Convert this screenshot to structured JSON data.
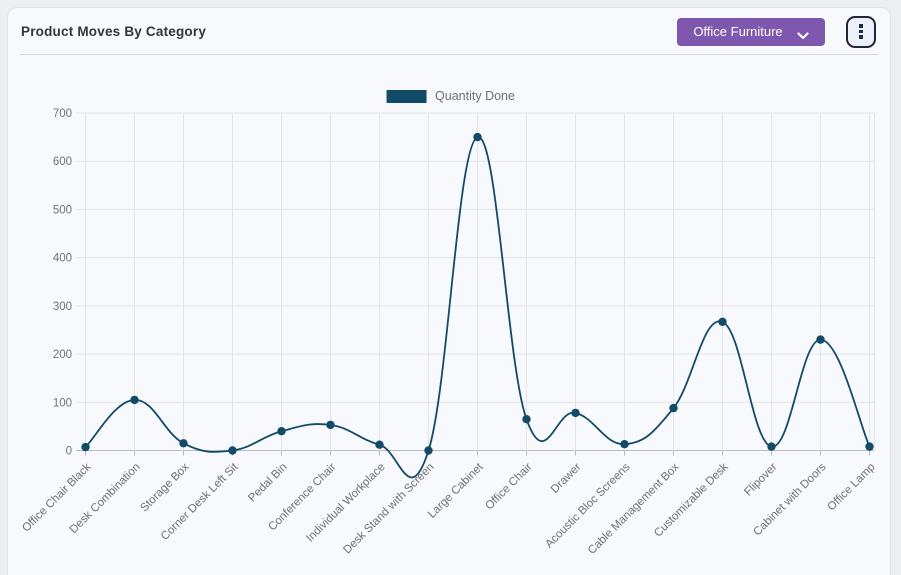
{
  "header": {
    "title": "Product Moves By Category"
  },
  "controls": {
    "category_select": {
      "value": "Office Furniture",
      "icon": "chevron-down-icon"
    },
    "menu_button": {
      "icon": "kebab-menu-icon"
    }
  },
  "legend": {
    "label": "Quantity Done"
  },
  "colors": {
    "accent_purple": "#7e57ae",
    "line": "#124b68",
    "card_background": "#f8f9fc",
    "page_background": "#eceef2",
    "grid": "#e3e4e8",
    "axis": "#b9babf",
    "axis_text": "#707279"
  },
  "chart_data": {
    "type": "line",
    "title": "Product Moves By Category",
    "categories": [
      "Office Chair Black",
      "Desk Combination",
      "Storage Box",
      "Corner Desk Left Sit",
      "Pedal Bin",
      "Conference Chair",
      "Individual Workplace",
      "Desk Stand with Screen",
      "Large Cabinet",
      "Office Chair",
      "Drawer",
      "Acoustic Bloc Screens",
      "Cable Management Box",
      "Customizable Desk",
      "Flipover",
      "Cabinet with Doors",
      "Office Lamp"
    ],
    "series": [
      {
        "name": "Quantity Done",
        "values": [
          7,
          105,
          15,
          0,
          40,
          53,
          12,
          0,
          650,
          65,
          78,
          13,
          88,
          267,
          8,
          230,
          8
        ]
      }
    ],
    "xlabel": "",
    "ylabel": "",
    "ylim": [
      0,
      700
    ],
    "ytick_step": 100,
    "grid": true,
    "legend_position": "top-center",
    "line_color": "#124b68",
    "point_radius": 4.2,
    "smooth": true
  }
}
